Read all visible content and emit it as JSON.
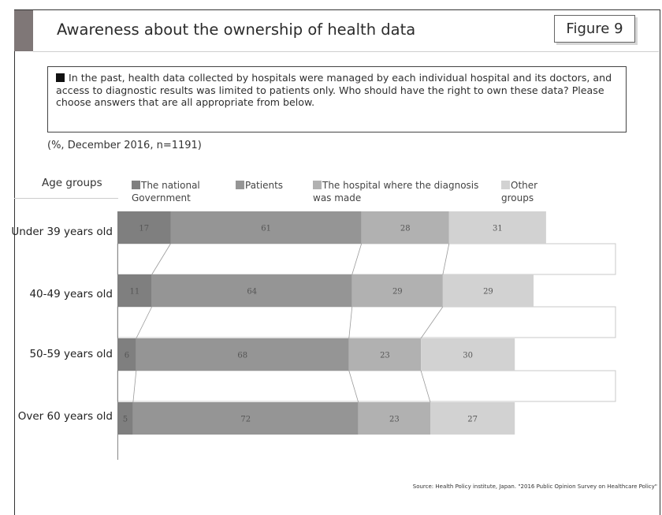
{
  "header": {
    "title": "Awareness about the ownership of health data",
    "figure_label": "Figure 9"
  },
  "question": {
    "text": "In the past, health data collected by hospitals were managed by each individual hospital and its doctors, and access to diagnostic results was limited to patients only. Who should have the right to own these data? Please choose answers that are all appropriate from below."
  },
  "note": "(%, December 2016, n=1191)",
  "source": "Source: Health Policy institute, Japan. \"2016 Public Opinion Survey on Healthcare Policy\"",
  "colors": {
    "government": "#7f7f7f",
    "patients": "#959595",
    "hospital": "#b1b1b1",
    "other": "#d2d2d2",
    "value_label": "#555555"
  },
  "chart_data": {
    "type": "bar",
    "orientation": "horizontal-stacked",
    "category_header": "Age groups",
    "categories": [
      "Under 39 years old",
      "40-49 years old",
      "50-59 years old",
      "Over 60 years old"
    ],
    "series": [
      {
        "name": "The national Government",
        "values": [
          17,
          11,
          6,
          5
        ]
      },
      {
        "name": "Patients",
        "values": [
          61,
          64,
          68,
          72
        ]
      },
      {
        "name": "The hospital where the diagnosis was made",
        "values": [
          28,
          29,
          23,
          23
        ]
      },
      {
        "name": "Other groups",
        "values": [
          31,
          29,
          30,
          27
        ]
      }
    ],
    "legend_position": "top",
    "connector_lines": true
  }
}
